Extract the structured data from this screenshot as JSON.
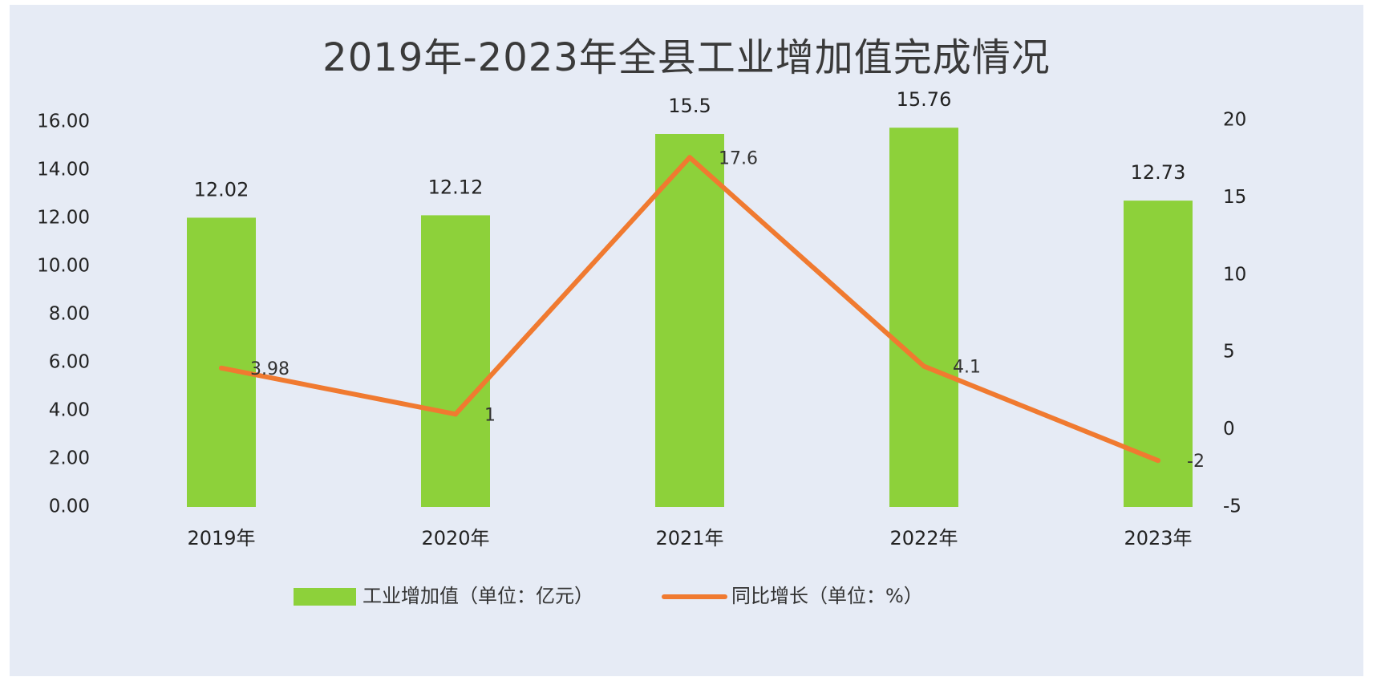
{
  "chart_data": {
    "type": "bar",
    "title": "2019年-2023年全县工业增加值完成情况",
    "categories": [
      "2019年",
      "2020年",
      "2021年",
      "2022年",
      "2023年"
    ],
    "series": [
      {
        "name": "工业增加值（单位：亿元）",
        "type": "bar",
        "axis": "left",
        "values": [
          12.02,
          12.12,
          15.5,
          15.76,
          12.73
        ],
        "labels": [
          "12.02",
          "12.12",
          "15.5",
          "15.76",
          "12.73"
        ],
        "color": "#8dd13a"
      },
      {
        "name": "同比增长（单位：%）",
        "type": "line",
        "axis": "right",
        "values": [
          3.98,
          1,
          17.6,
          4.1,
          -2
        ],
        "labels": [
          "3.98",
          "1",
          "17.6",
          "4.1",
          "-2"
        ],
        "color": "#f07a30"
      }
    ],
    "y_left": {
      "min": 0,
      "max": 16,
      "ticks": [
        "0.00",
        "2.00",
        "4.00",
        "6.00",
        "8.00",
        "10.00",
        "12.00",
        "14.00",
        "16.00"
      ]
    },
    "y_right": {
      "min": -5,
      "max": 20,
      "ticks": [
        "-5",
        "0",
        "5",
        "10",
        "15",
        "20"
      ]
    },
    "grid": false,
    "legend_position": "bottom-center"
  }
}
